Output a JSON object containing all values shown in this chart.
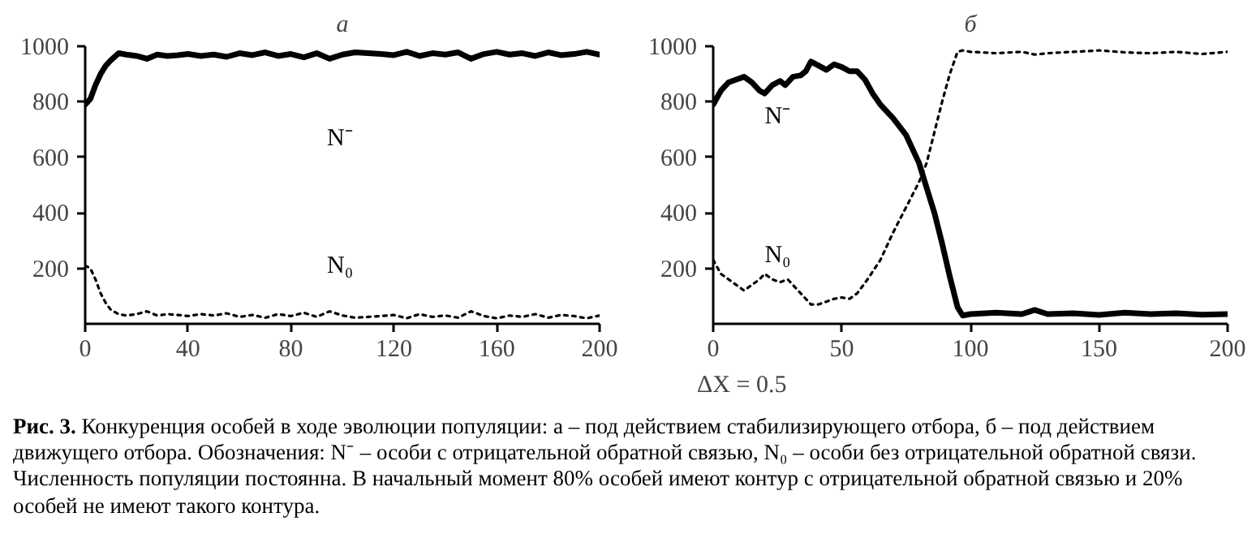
{
  "chart_data": [
    {
      "type": "line",
      "title": "а",
      "xlim": [
        0,
        200
      ],
      "ylim": [
        0,
        1000
      ],
      "xticks": [
        0,
        40,
        80,
        120,
        160,
        200
      ],
      "yticks": [
        200,
        400,
        600,
        800,
        1000
      ],
      "grid": false,
      "annotations": [
        "Рис. 3.",
        "Конкуренция особей в ходе эволюции популяции: а – под действием стабилизирующего отбора, б – под действием движущего отбора. Обозначения: N⁻ – особи с отрицательной обратной связью, N₀ – особи без отрицательной обратной связи. Численность популяции постоянна. В начальный момент 80% особей имеют контур с отрицательной обратной связью и 20% особей не имеют такого контура."
      ],
      "series": [
        {
          "name": "N⁻",
          "color": "#000000",
          "line_style": "solid",
          "x": [
            0,
            2,
            4,
            6,
            8,
            10,
            13,
            16,
            20,
            24,
            28,
            32,
            36,
            40,
            45,
            50,
            55,
            60,
            65,
            70,
            75,
            80,
            85,
            90,
            95,
            100,
            105,
            110,
            115,
            120,
            125,
            130,
            135,
            140,
            145,
            150,
            155,
            160,
            165,
            170,
            175,
            180,
            185,
            190,
            195,
            200
          ],
          "values": [
            790,
            810,
            860,
            900,
            930,
            950,
            975,
            970,
            965,
            955,
            970,
            965,
            968,
            972,
            965,
            970,
            962,
            975,
            968,
            978,
            965,
            972,
            960,
            975,
            955,
            970,
            978,
            975,
            972,
            968,
            980,
            965,
            975,
            970,
            978,
            955,
            972,
            980,
            970,
            975,
            965,
            978,
            968,
            972,
            980,
            970
          ]
        },
        {
          "name": "N₀",
          "color": "#000000",
          "line_style": "dotted",
          "x": [
            0,
            2,
            4,
            6,
            8,
            10,
            13,
            16,
            20,
            24,
            28,
            32,
            36,
            40,
            45,
            50,
            55,
            60,
            65,
            70,
            75,
            80,
            85,
            90,
            95,
            100,
            105,
            110,
            115,
            120,
            125,
            130,
            135,
            140,
            145,
            150,
            155,
            160,
            165,
            170,
            175,
            180,
            185,
            190,
            195,
            200
          ],
          "values": [
            210,
            200,
            160,
            110,
            75,
            50,
            35,
            30,
            35,
            45,
            30,
            35,
            32,
            28,
            35,
            30,
            38,
            25,
            32,
            22,
            35,
            28,
            40,
            25,
            45,
            30,
            22,
            25,
            28,
            32,
            20,
            35,
            25,
            30,
            22,
            45,
            28,
            20,
            30,
            25,
            35,
            22,
            32,
            28,
            20,
            30
          ]
        }
      ]
    },
    {
      "type": "line",
      "title": "б",
      "xlim": [
        0,
        200
      ],
      "ylim": [
        0,
        1000
      ],
      "xticks": [
        0,
        50,
        100,
        150,
        200
      ],
      "yticks": [
        200,
        400,
        600,
        800,
        1000
      ],
      "grid": false,
      "annotations": [
        "ΔX = 0.5"
      ],
      "series": [
        {
          "name": "N⁻",
          "color": "#000000",
          "line_style": "solid",
          "x": [
            0,
            3,
            6,
            9,
            12,
            15,
            18,
            20,
            23,
            26,
            28,
            31,
            34,
            36,
            38,
            41,
            44,
            47,
            50,
            53,
            56,
            59,
            62,
            65,
            70,
            75,
            80,
            83,
            86,
            89,
            92,
            95,
            97,
            100,
            110,
            120,
            125,
            130,
            140,
            150,
            160,
            170,
            180,
            190,
            200
          ],
          "values": [
            790,
            840,
            870,
            880,
            890,
            870,
            840,
            830,
            860,
            875,
            860,
            890,
            895,
            910,
            945,
            930,
            915,
            935,
            925,
            910,
            910,
            880,
            830,
            790,
            740,
            680,
            580,
            490,
            400,
            290,
            170,
            60,
            30,
            35,
            40,
            35,
            50,
            35,
            38,
            32,
            40,
            35,
            38,
            33,
            35
          ]
        },
        {
          "name": "N₀",
          "color": "#000000",
          "line_style": "dotted",
          "x": [
            0,
            3,
            6,
            9,
            12,
            15,
            18,
            20,
            23,
            26,
            29,
            32,
            35,
            38,
            41,
            44,
            47,
            50,
            53,
            56,
            60,
            65,
            70,
            75,
            80,
            83,
            86,
            89,
            92,
            95,
            97,
            100,
            110,
            120,
            125,
            130,
            140,
            150,
            160,
            170,
            180,
            190,
            200
          ],
          "values": [
            230,
            180,
            160,
            140,
            120,
            140,
            160,
            180,
            160,
            150,
            160,
            130,
            100,
            70,
            70,
            80,
            90,
            95,
            90,
            110,
            160,
            230,
            330,
            420,
            510,
            580,
            690,
            800,
            900,
            980,
            985,
            980,
            975,
            980,
            970,
            975,
            980,
            985,
            978,
            975,
            980,
            972,
            980
          ]
        }
      ]
    }
  ]
}
